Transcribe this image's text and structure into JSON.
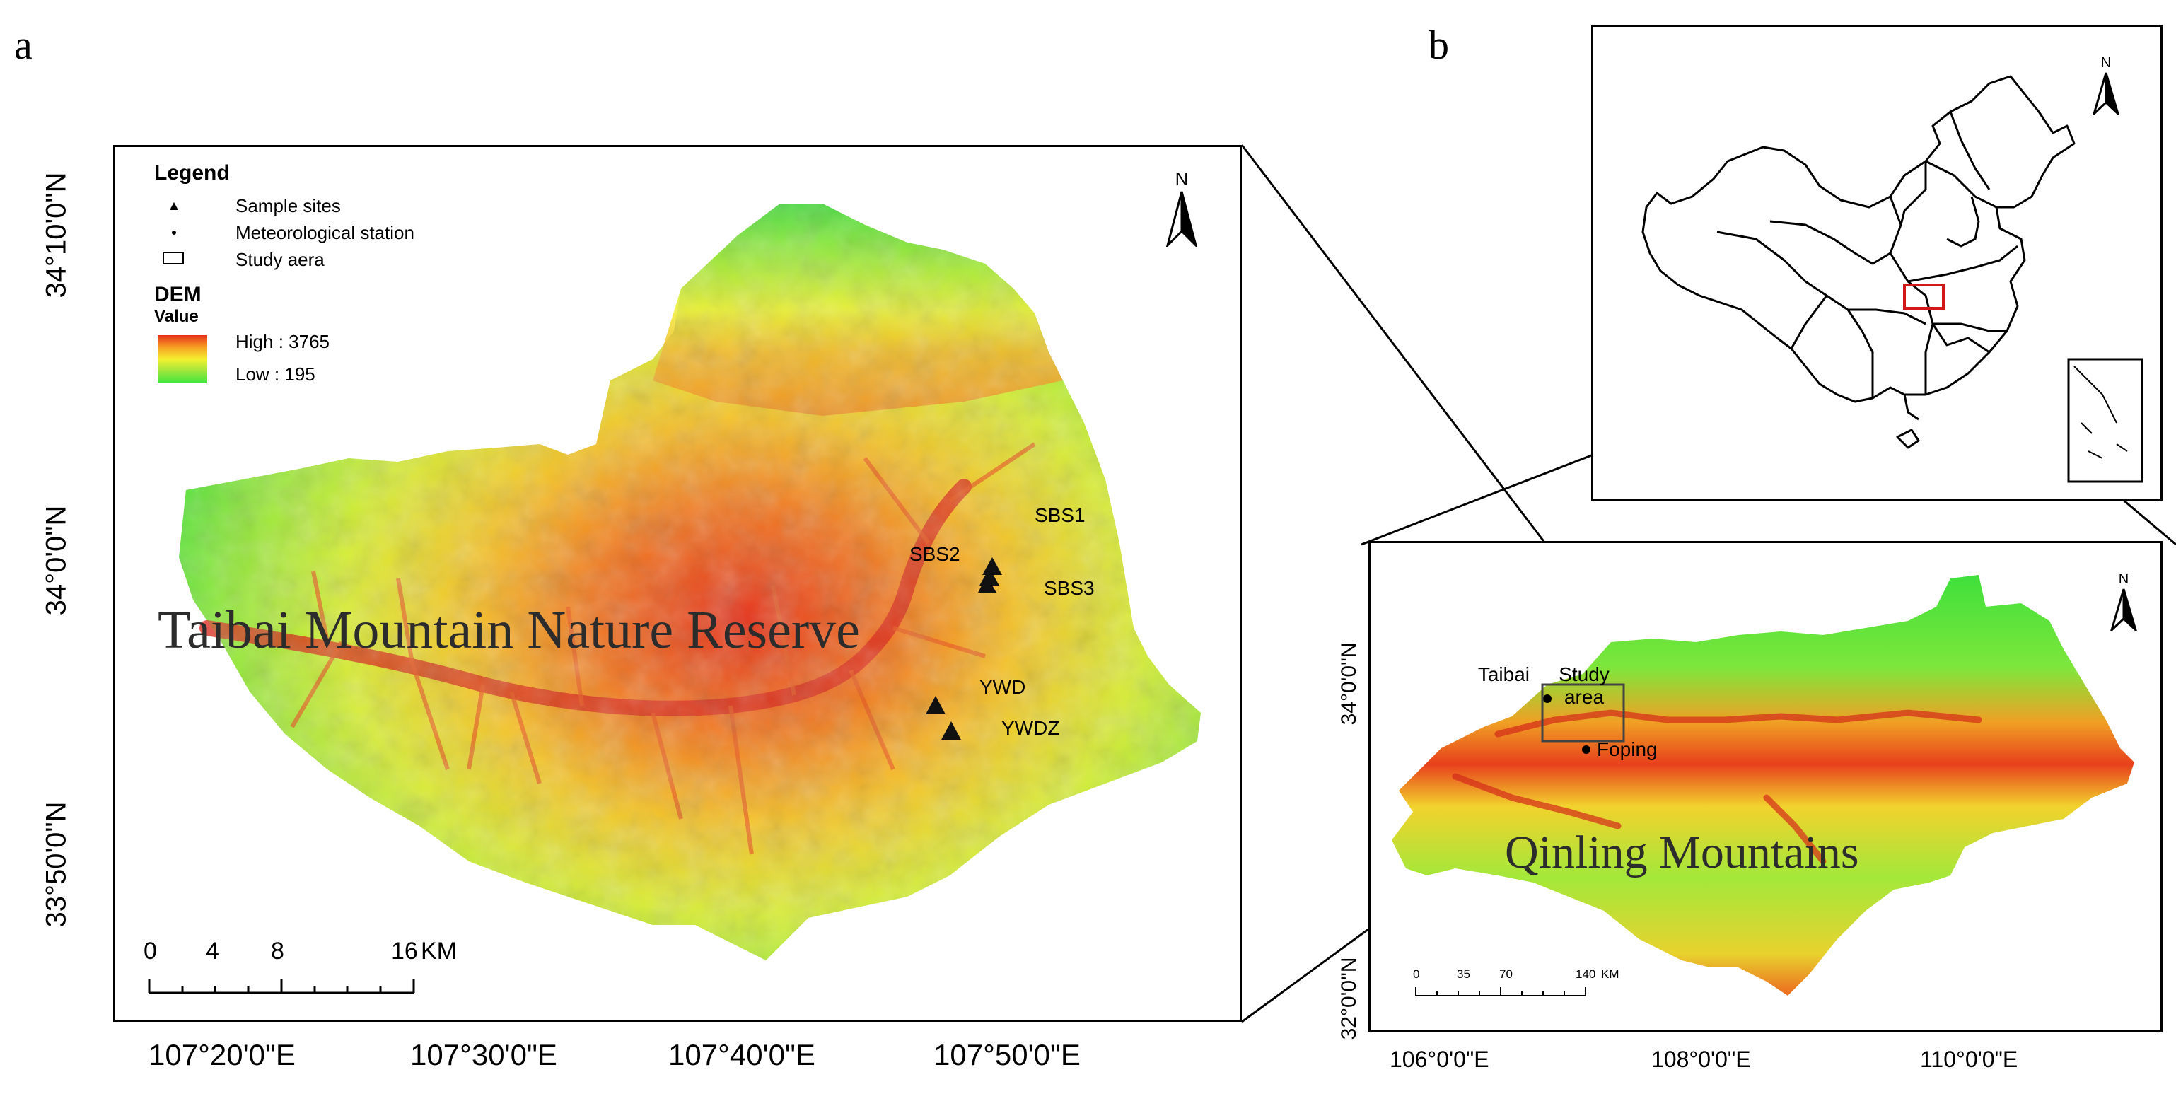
{
  "panel_a": {
    "letter": "a",
    "legend": {
      "title": "Legend",
      "items": [
        {
          "label": "Sample sites",
          "icon": "triangle-icon"
        },
        {
          "label": "Meteorological station",
          "icon": "dot-icon"
        },
        {
          "label": "Study aera",
          "icon": "rectangle-icon"
        }
      ],
      "dem_title": "DEM",
      "dem_subtitle": "Value",
      "high": "High : 3765",
      "low": "Low : 195",
      "ramp_colors": [
        "#e8301a",
        "#f7a023",
        "#f5f030",
        "#9be63c",
        "#3ee63c"
      ]
    },
    "title": "Taibai Mountain Nature Reserve",
    "sites": [
      "SBS1",
      "SBS2",
      "SBS3",
      "YWD",
      "YWDZ"
    ],
    "north": "N",
    "scale": {
      "labels": [
        "0",
        "4",
        "8",
        "16"
      ],
      "unit": "KM"
    },
    "lat_labels": [
      "34°10'0\"N",
      "34°0'0\"N",
      "33°50'0\"N"
    ],
    "lon_labels": [
      "107°20'0\"E",
      "107°30'0\"E",
      "107°40'0\"E",
      "107°50'0\"E"
    ]
  },
  "panel_b": {
    "letter": "b",
    "inset_north": "N",
    "map": {
      "north": "N",
      "places": {
        "taibai": "Taibai",
        "study_area": "Study area",
        "foping": "Foping"
      },
      "title": "Qinling Mountains",
      "scale": {
        "labels": [
          "0",
          "35",
          "70",
          "140"
        ],
        "unit": "KM"
      },
      "lat_labels": [
        "34°0'0\"N",
        "32°0'0\"N"
      ],
      "lon_labels": [
        "106°0'0\"E",
        "108°0'0\"E",
        "110°0'0\"E"
      ]
    }
  }
}
